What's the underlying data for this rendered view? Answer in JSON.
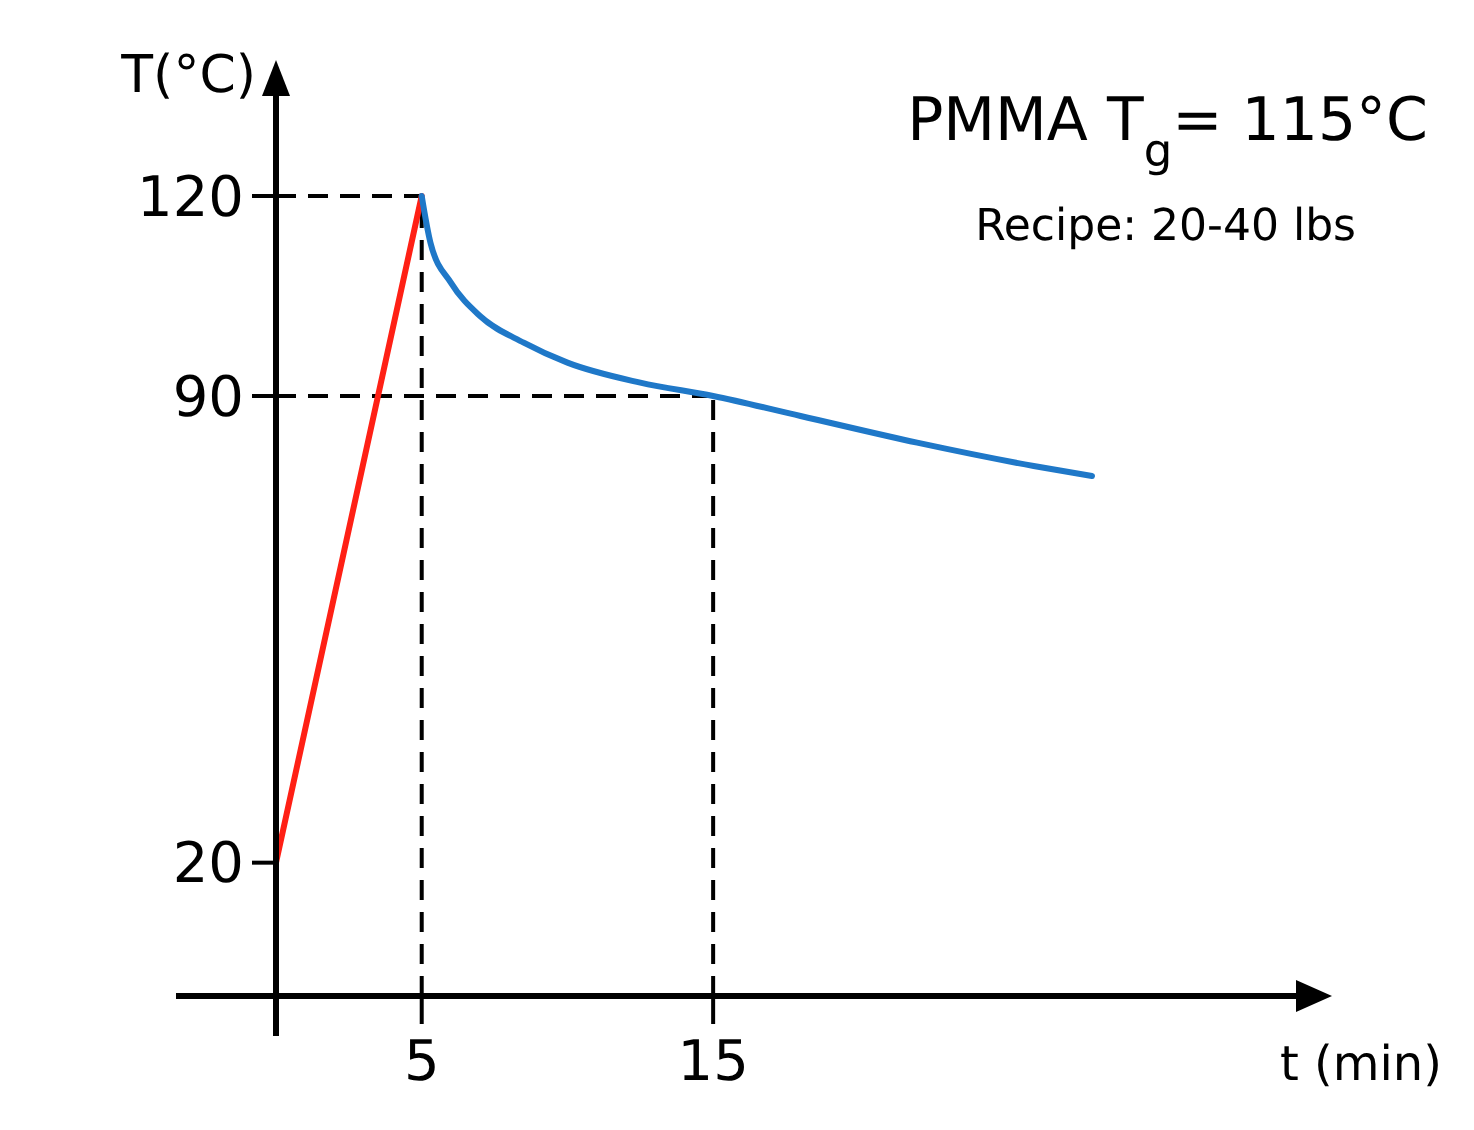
{
  "chart_data": {
    "type": "line",
    "xlabel": "t (min)",
    "ylabel": "T(°C)",
    "annotations": [
      "PMMA T$_{g}$= 115°C",
      "Recipe: 20-40 lbs"
    ],
    "series": [
      {
        "color": "#ff2015",
        "x": [
          0,
          5
        ],
        "values": [
          20,
          120
        ]
      },
      {
        "color": "#1f78c8",
        "x": [
          5,
          5.3,
          6,
          7,
          8.5,
          10,
          12.5,
          15,
          18,
          22,
          26,
          28
        ],
        "values": [
          120,
          113,
          107,
          102,
          98,
          95,
          92,
          90,
          87,
          83,
          79.5,
          78
        ]
      }
    ],
    "xlim": [
      0,
      35
    ],
    "xticks": [
      5,
      15
    ],
    "ylim": [
      0,
      135
    ],
    "yticks": [
      20,
      90,
      120
    ],
    "ref_lines": [
      {
        "axis": "y",
        "value": 120,
        "color": "#000000",
        "line_style": "dashed"
      },
      {
        "axis": "y",
        "value": 90,
        "color": "#000000",
        "line_style": "dashed"
      },
      {
        "axis": "x",
        "value": 5,
        "color": "#000000",
        "line_style": "dashed"
      },
      {
        "axis": "x",
        "value": 15,
        "color": "#000000",
        "line_style": "dashed"
      }
    ],
    "grid": false,
    "marker": "none",
    "line_style": "solid"
  }
}
